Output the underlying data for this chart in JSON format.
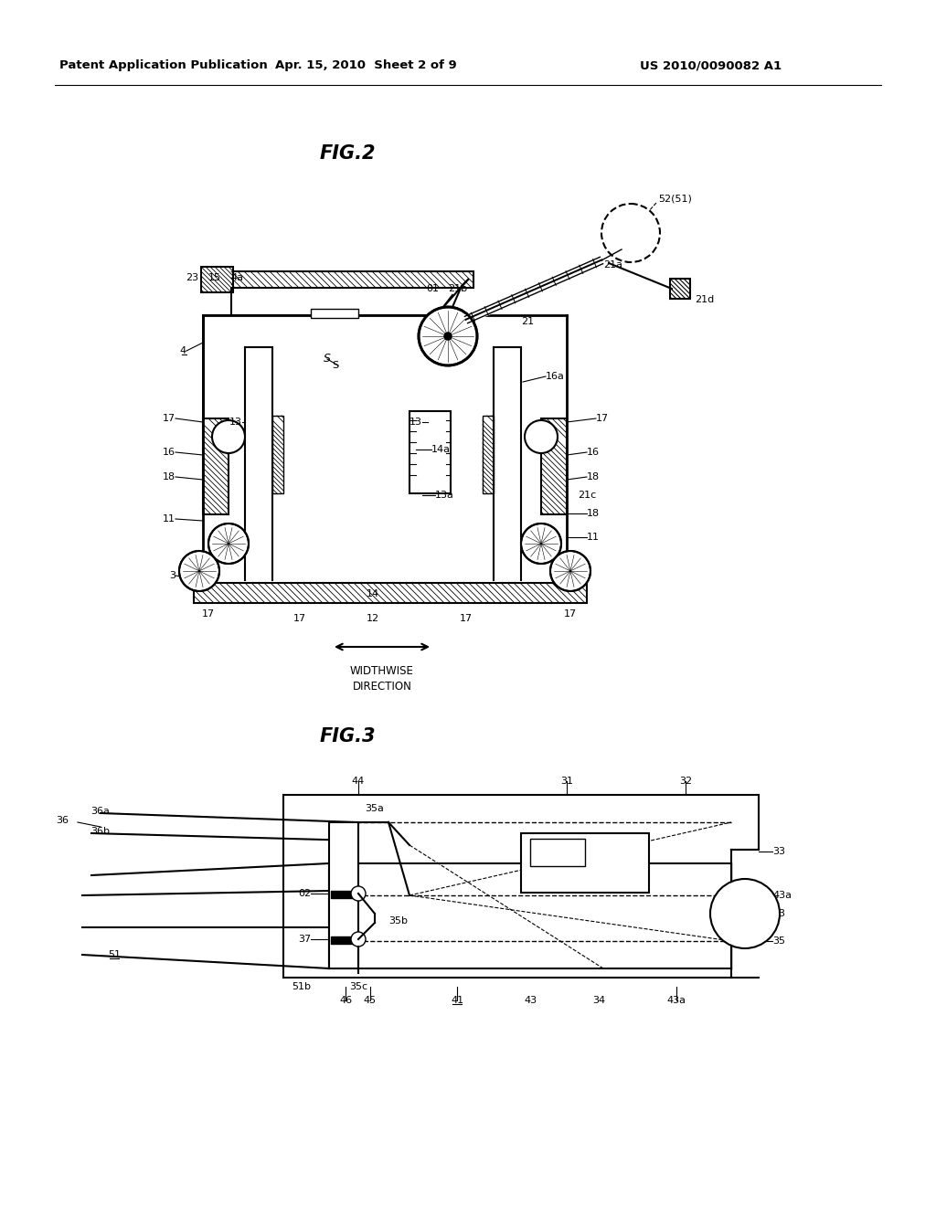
{
  "bg_color": "#ffffff",
  "header_left": "Patent Application Publication",
  "header_mid": "Apr. 15, 2010  Sheet 2 of 9",
  "header_right": "US 2010/0090082 A1",
  "fig2_title": "FIG.2",
  "fig3_title": "FIG.3",
  "lc": "#000000",
  "tc": "#000000"
}
